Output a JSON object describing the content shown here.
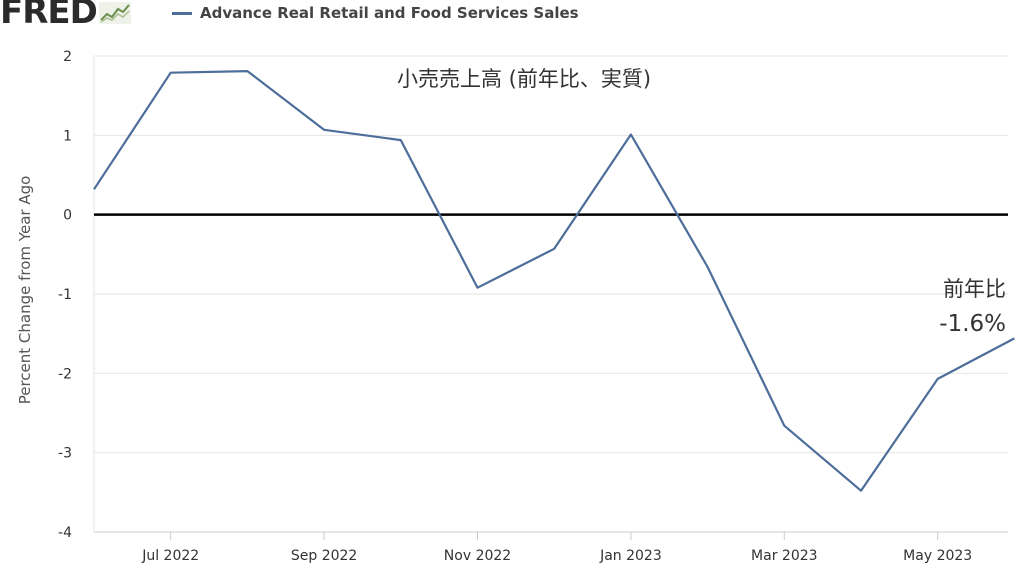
{
  "header": {
    "logo_text": "FRED",
    "legend_label": "Advance Real Retail and Food Services Sales"
  },
  "chart_data": {
    "type": "line",
    "title": "小売売上高 (前年比、実質)",
    "xlabel": "",
    "ylabel": "Percent Change from Year Ago",
    "x": [
      "2022-06",
      "2022-07",
      "2022-08",
      "2022-09",
      "2022-10",
      "2022-11",
      "2022-12",
      "2023-01",
      "2023-02",
      "2023-03",
      "2023-04",
      "2023-05",
      "2023-06"
    ],
    "series": [
      {
        "name": "Advance Real Retail and Food Services Sales",
        "values": [
          0.32,
          1.79,
          1.81,
          1.07,
          0.94,
          -0.92,
          -0.43,
          1.01,
          -0.66,
          -2.66,
          -3.48,
          -2.07,
          -1.56
        ]
      }
    ],
    "ylim": [
      -4,
      2
    ],
    "yticks": [
      "2",
      "1",
      "0",
      "-1",
      "-2",
      "-3",
      "-4"
    ],
    "xticks": [
      {
        "at": "2022-07",
        "label": "Jul 2022"
      },
      {
        "at": "2022-09",
        "label": "Sep 2022"
      },
      {
        "at": "2022-11",
        "label": "Nov 2022"
      },
      {
        "at": "2023-01",
        "label": "Jan 2023"
      },
      {
        "at": "2023-03",
        "label": "Mar 2023"
      },
      {
        "at": "2023-05",
        "label": "May 2023"
      }
    ],
    "annotation": {
      "line1": "前年比",
      "line2": "-1.6%"
    },
    "grid": true,
    "series_color": "#4d6d9a"
  }
}
